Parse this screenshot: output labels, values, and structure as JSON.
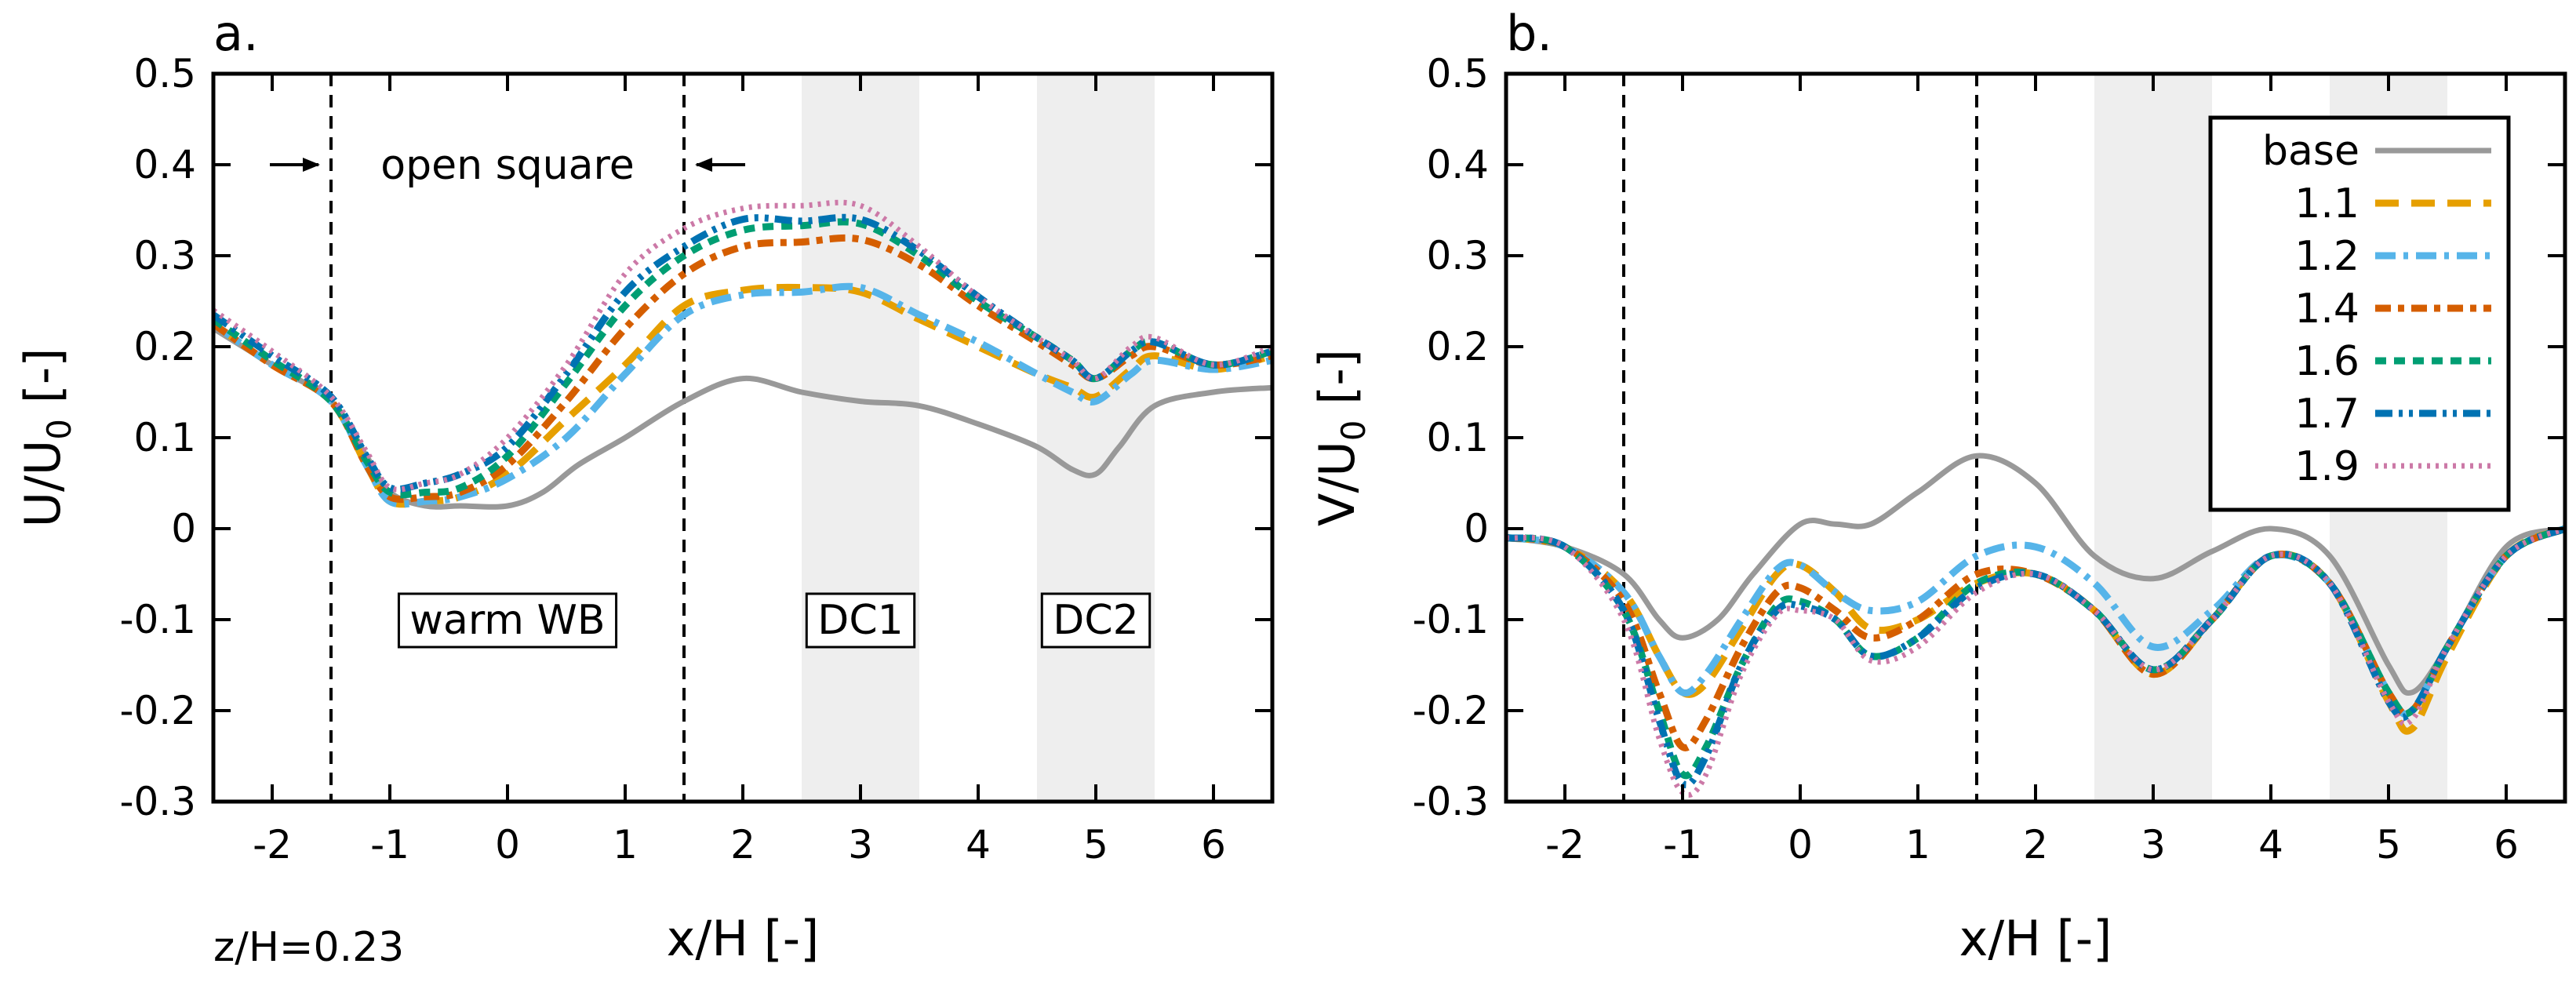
{
  "figure_note": "z/H=0.23",
  "colors": {
    "base": "#999999",
    "1.1": "#E69F00",
    "1.2": "#56B4E9",
    "1.4": "#D55E00",
    "1.6": "#009E73",
    "1.7": "#0072B2",
    "1.9": "#CC79A7",
    "shade": "#eeeeee"
  },
  "chart_data": [
    {
      "type": "line",
      "panel_label": "a.",
      "xlabel": "x/H [-]",
      "ylabel_main": "U/U",
      "ylabel_sub": "0",
      "ylabel_tail": " [-]",
      "xlim": [
        -2.5,
        6.5
      ],
      "ylim": [
        -0.3,
        0.5
      ],
      "xticks": [
        -2,
        -1,
        0,
        1,
        2,
        3,
        4,
        5,
        6
      ],
      "yticks": [
        -0.3,
        -0.2,
        -0.1,
        0,
        0.1,
        0.2,
        0.3,
        0.4,
        0.5
      ],
      "yticklabels": [
        "-0.3",
        "-0.2",
        "-0.1",
        "0",
        "0.1",
        "0.2",
        "0.3",
        "0.4",
        "0.5"
      ],
      "vlines": [
        -1.5,
        1.5
      ],
      "shaded_regions": [
        [
          2.5,
          3.5
        ],
        [
          4.5,
          5.5
        ]
      ],
      "annotations": {
        "open_square": {
          "text": "open square",
          "x_from": -1.5,
          "x_to": 1.5,
          "y": 0.4
        },
        "boxes": [
          {
            "text": "warm WB",
            "x": 0.0,
            "y": -0.1
          },
          {
            "text": "DC1",
            "x": 3.0,
            "y": -0.1
          },
          {
            "text": "DC2",
            "x": 5.0,
            "y": -0.1
          }
        ]
      },
      "series": [
        {
          "name": "base",
          "x": [
            -2.5,
            -2,
            -1.5,
            -1.2,
            -1,
            -0.7,
            -0.4,
            0,
            0.3,
            0.6,
            1,
            1.5,
            2,
            2.5,
            3,
            3.5,
            4,
            4.5,
            4.8,
            5,
            5.2,
            5.5,
            6,
            6.5
          ],
          "y": [
            0.22,
            0.18,
            0.14,
            0.08,
            0.04,
            0.025,
            0.025,
            0.025,
            0.04,
            0.07,
            0.1,
            0.14,
            0.165,
            0.15,
            0.14,
            0.135,
            0.115,
            0.09,
            0.065,
            0.06,
            0.09,
            0.135,
            0.15,
            0.155
          ]
        },
        {
          "name": "1.1",
          "x": [
            -2.5,
            -2,
            -1.5,
            -1.2,
            -1,
            -0.7,
            -0.4,
            0,
            0.5,
            1,
            1.5,
            2,
            2.5,
            3,
            3.5,
            4,
            4.5,
            4.8,
            5,
            5.3,
            5.5,
            6,
            6.5
          ],
          "y": [
            0.225,
            0.18,
            0.14,
            0.07,
            0.03,
            0.03,
            0.035,
            0.06,
            0.12,
            0.18,
            0.245,
            0.262,
            0.265,
            0.26,
            0.23,
            0.2,
            0.17,
            0.155,
            0.145,
            0.175,
            0.19,
            0.175,
            0.19
          ]
        },
        {
          "name": "1.2",
          "x": [
            -2.5,
            -2,
            -1.5,
            -1.2,
            -1,
            -0.7,
            -0.4,
            0,
            0.5,
            1,
            1.5,
            2,
            2.5,
            3,
            3.5,
            4,
            4.5,
            4.8,
            5,
            5.3,
            5.5,
            6,
            6.5
          ],
          "y": [
            0.225,
            0.18,
            0.14,
            0.07,
            0.03,
            0.03,
            0.035,
            0.055,
            0.1,
            0.17,
            0.235,
            0.257,
            0.26,
            0.265,
            0.235,
            0.205,
            0.17,
            0.15,
            0.14,
            0.17,
            0.185,
            0.175,
            0.185
          ]
        },
        {
          "name": "1.4",
          "x": [
            -2.5,
            -2,
            -1.5,
            -1.2,
            -1,
            -0.7,
            -0.4,
            0,
            0.5,
            1,
            1.5,
            2,
            2.5,
            3,
            3.5,
            4,
            4.5,
            4.8,
            5,
            5.3,
            5.5,
            6,
            6.5
          ],
          "y": [
            0.225,
            0.18,
            0.14,
            0.07,
            0.035,
            0.035,
            0.04,
            0.07,
            0.14,
            0.22,
            0.28,
            0.31,
            0.315,
            0.318,
            0.29,
            0.245,
            0.205,
            0.18,
            0.165,
            0.19,
            0.2,
            0.18,
            0.19
          ]
        },
        {
          "name": "1.6",
          "x": [
            -2.5,
            -2,
            -1.5,
            -1.2,
            -1,
            -0.7,
            -0.4,
            0,
            0.5,
            1,
            1.5,
            2,
            2.5,
            3,
            3.5,
            4,
            4.5,
            4.8,
            5,
            5.3,
            5.5,
            6,
            6.5
          ],
          "y": [
            0.23,
            0.185,
            0.14,
            0.075,
            0.04,
            0.04,
            0.045,
            0.08,
            0.16,
            0.245,
            0.3,
            0.328,
            0.333,
            0.335,
            0.3,
            0.25,
            0.21,
            0.185,
            0.165,
            0.195,
            0.205,
            0.18,
            0.195
          ]
        },
        {
          "name": "1.7",
          "x": [
            -2.5,
            -2,
            -1.5,
            -1.2,
            -1,
            -0.7,
            -0.4,
            0,
            0.5,
            1,
            1.5,
            2,
            2.5,
            3,
            3.5,
            4,
            4.5,
            4.8,
            5,
            5.3,
            5.5,
            6,
            6.5
          ],
          "y": [
            0.235,
            0.19,
            0.145,
            0.08,
            0.045,
            0.05,
            0.06,
            0.09,
            0.17,
            0.26,
            0.31,
            0.34,
            0.338,
            0.34,
            0.305,
            0.255,
            0.21,
            0.185,
            0.165,
            0.195,
            0.205,
            0.18,
            0.195
          ]
        },
        {
          "name": "1.9",
          "x": [
            -2.5,
            -2,
            -1.5,
            -1.2,
            -1,
            -0.7,
            -0.4,
            0,
            0.5,
            1,
            1.5,
            2,
            2.5,
            3,
            3.5,
            4,
            4.5,
            4.8,
            5,
            5.3,
            5.5,
            6,
            6.5
          ],
          "y": [
            0.24,
            0.195,
            0.145,
            0.085,
            0.045,
            0.05,
            0.06,
            0.1,
            0.18,
            0.28,
            0.33,
            0.352,
            0.355,
            0.355,
            0.31,
            0.255,
            0.21,
            0.185,
            0.165,
            0.2,
            0.21,
            0.18,
            0.2
          ]
        }
      ]
    },
    {
      "type": "line",
      "panel_label": "b.",
      "xlabel": "x/H [-]",
      "ylabel_main": "V/U",
      "ylabel_sub": "0",
      "ylabel_tail": " [-]",
      "xlim": [
        -2.5,
        6.5
      ],
      "ylim": [
        -0.3,
        0.5
      ],
      "xticks": [
        -2,
        -1,
        0,
        1,
        2,
        3,
        4,
        5,
        6
      ],
      "yticks": [
        -0.3,
        -0.2,
        -0.1,
        0,
        0.1,
        0.2,
        0.3,
        0.4,
        0.5
      ],
      "yticklabels": [
        "-0.3",
        "-0.2",
        "-0.1",
        "0",
        "0.1",
        "0.2",
        "0.3",
        "0.4",
        "0.5"
      ],
      "vlines": [
        -1.5,
        1.5
      ],
      "shaded_regions": [
        [
          2.5,
          3.5
        ],
        [
          4.5,
          5.5
        ]
      ],
      "legend": {
        "position": "top-right",
        "entries": [
          "base",
          "1.1",
          "1.2",
          "1.4",
          "1.6",
          "1.7",
          "1.9"
        ]
      },
      "series": [
        {
          "name": "base",
          "x": [
            -2.5,
            -2,
            -1.5,
            -1.2,
            -1,
            -0.7,
            -0.4,
            0,
            0.3,
            0.6,
            1,
            1.5,
            2,
            2.5,
            3,
            3.5,
            4,
            4.5,
            5,
            5.2,
            5.5,
            6,
            6.5
          ],
          "y": [
            -0.01,
            -0.02,
            -0.05,
            -0.1,
            -0.12,
            -0.1,
            -0.05,
            0.005,
            0.005,
            0.005,
            0.04,
            0.08,
            0.05,
            -0.03,
            -0.055,
            -0.025,
            0.0,
            -0.03,
            -0.15,
            -0.18,
            -0.13,
            -0.02,
            0.0
          ]
        },
        {
          "name": "1.1",
          "x": [
            -2.5,
            -2,
            -1.5,
            -1.2,
            -1,
            -0.8,
            -0.5,
            -0.2,
            0,
            0.3,
            0.6,
            1,
            1.5,
            2,
            2.5,
            3,
            3.5,
            4,
            4.5,
            5,
            5.2,
            5.5,
            6,
            6.5
          ],
          "y": [
            -0.01,
            -0.02,
            -0.07,
            -0.14,
            -0.18,
            -0.17,
            -0.11,
            -0.05,
            -0.04,
            -0.07,
            -0.11,
            -0.1,
            -0.06,
            -0.05,
            -0.09,
            -0.16,
            -0.1,
            -0.03,
            -0.06,
            -0.19,
            -0.22,
            -0.14,
            -0.03,
            0.0
          ]
        },
        {
          "name": "1.2",
          "x": [
            -2.5,
            -2,
            -1.5,
            -1.2,
            -1,
            -0.8,
            -0.5,
            -0.2,
            0,
            0.3,
            0.6,
            1,
            1.5,
            2,
            2.5,
            3,
            3.5,
            4,
            4.5,
            5,
            5.2,
            5.5,
            6,
            6.5
          ],
          "y": [
            -0.01,
            -0.02,
            -0.07,
            -0.14,
            -0.18,
            -0.16,
            -0.1,
            -0.045,
            -0.04,
            -0.07,
            -0.09,
            -0.08,
            -0.03,
            -0.02,
            -0.06,
            -0.13,
            -0.09,
            -0.03,
            -0.06,
            -0.18,
            -0.2,
            -0.13,
            -0.03,
            0.0
          ]
        },
        {
          "name": "1.4",
          "x": [
            -2.5,
            -2,
            -1.5,
            -1.2,
            -1,
            -0.8,
            -0.5,
            -0.2,
            0,
            0.3,
            0.6,
            1,
            1.5,
            2,
            2.5,
            3,
            3.5,
            4,
            4.5,
            5,
            5.2,
            5.5,
            6,
            6.5
          ],
          "y": [
            -0.01,
            -0.02,
            -0.08,
            -0.18,
            -0.24,
            -0.21,
            -0.13,
            -0.07,
            -0.065,
            -0.09,
            -0.12,
            -0.1,
            -0.05,
            -0.05,
            -0.09,
            -0.16,
            -0.1,
            -0.03,
            -0.06,
            -0.18,
            -0.2,
            -0.13,
            -0.03,
            0.0
          ]
        },
        {
          "name": "1.6",
          "x": [
            -2.5,
            -2,
            -1.5,
            -1.2,
            -1,
            -0.8,
            -0.5,
            -0.2,
            0,
            0.3,
            0.6,
            1,
            1.5,
            2,
            2.5,
            3,
            3.5,
            4,
            4.5,
            5,
            5.2,
            5.5,
            6,
            6.5
          ],
          "y": [
            -0.01,
            -0.02,
            -0.09,
            -0.2,
            -0.27,
            -0.24,
            -0.15,
            -0.085,
            -0.08,
            -0.1,
            -0.14,
            -0.12,
            -0.06,
            -0.05,
            -0.09,
            -0.155,
            -0.1,
            -0.03,
            -0.06,
            -0.18,
            -0.2,
            -0.13,
            -0.03,
            0.0
          ]
        },
        {
          "name": "1.7",
          "x": [
            -2.5,
            -2,
            -1.5,
            -1.2,
            -1,
            -0.8,
            -0.5,
            -0.2,
            0,
            0.3,
            0.6,
            1,
            1.5,
            2,
            2.5,
            3,
            3.5,
            4,
            4.5,
            5,
            5.2,
            5.5,
            6,
            6.5
          ],
          "y": [
            -0.01,
            -0.02,
            -0.09,
            -0.21,
            -0.28,
            -0.25,
            -0.15,
            -0.09,
            -0.085,
            -0.1,
            -0.14,
            -0.12,
            -0.065,
            -0.05,
            -0.09,
            -0.155,
            -0.1,
            -0.03,
            -0.06,
            -0.19,
            -0.2,
            -0.13,
            -0.03,
            0.0
          ]
        },
        {
          "name": "1.9",
          "x": [
            -2.5,
            -2,
            -1.5,
            -1.2,
            -1,
            -0.8,
            -0.5,
            -0.2,
            0,
            0.3,
            0.6,
            1,
            1.5,
            2,
            2.5,
            3,
            3.5,
            4,
            4.5,
            5,
            5.2,
            5.5,
            6,
            6.5
          ],
          "y": [
            -0.01,
            -0.02,
            -0.1,
            -0.23,
            -0.29,
            -0.27,
            -0.16,
            -0.095,
            -0.09,
            -0.1,
            -0.145,
            -0.13,
            -0.07,
            -0.05,
            -0.09,
            -0.155,
            -0.1,
            -0.03,
            -0.06,
            -0.19,
            -0.21,
            -0.13,
            -0.03,
            0.0
          ]
        }
      ]
    }
  ]
}
